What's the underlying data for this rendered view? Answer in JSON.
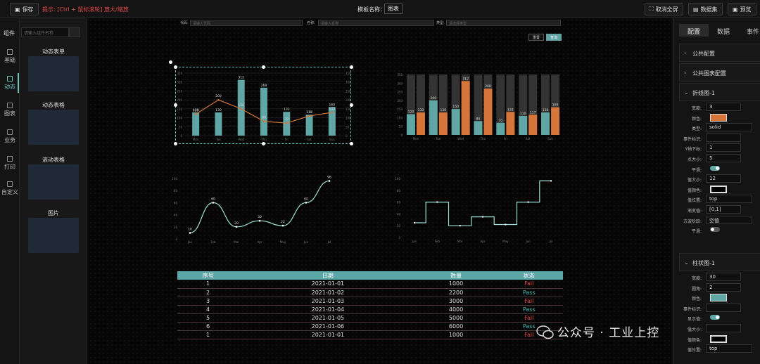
{
  "toolbar": {
    "save": "保存",
    "hint": "提示: [Ctrl + 鼠标滚轮] 放大/缩放",
    "template_label": "模板名称：",
    "template_value": "图表",
    "fullscreen": "取消全屏",
    "dataset": "数据集",
    "preview": "预览"
  },
  "leftnav": [
    "基础",
    "动态",
    "图表",
    "业务",
    "打印",
    "自定义"
  ],
  "components": {
    "heading": "组件",
    "search_placeholder": "请输入组件名称",
    "cards": [
      "动态表单",
      "动态表格",
      "滚动表格",
      "图片"
    ]
  },
  "filters": {
    "code_label": "代码:",
    "code_placeholder": "请输入代码",
    "name_label": "名称:",
    "name_placeholder": "请输入名称",
    "type_label": "类型:",
    "type_placeholder": "请选择类型",
    "reset": "重置",
    "query": "查询"
  },
  "colors": {
    "teal": "#5fa6a5",
    "orange": "#d6763a"
  },
  "chart_data": [
    {
      "type": "bar",
      "categories": [
        "Mon",
        "Tue",
        "Wed",
        "Thu",
        "Fri",
        "Sat",
        "Sun"
      ],
      "series": [
        {
          "values": [
            130,
            130,
            312,
            268,
            133,
            117,
            160
          ]
        },
        {
          "values": [
            120,
            200,
            150,
            80,
            70,
            110,
            130
          ]
        }
      ],
      "ylim": [
        0,
        350
      ],
      "y2lim": [
        0,
        350
      ]
    },
    {
      "type": "bar",
      "categories": [
        "Mon",
        "Tue",
        "Wed",
        "Thu",
        "Fri",
        "Sat",
        "Sun"
      ],
      "series": [
        {
          "values": [
            120,
            200,
            150,
            80,
            70,
            110,
            130
          ]
        },
        {
          "values": [
            130,
            130,
            312,
            268,
            133,
            117,
            160
          ]
        }
      ],
      "ylim": [
        0,
        350
      ]
    },
    {
      "type": "line",
      "categories": [
        "Jan",
        "Feb",
        "Mar",
        "Apr",
        "May",
        "Jun",
        "Jul"
      ],
      "values": [
        10,
        60,
        20,
        30,
        22,
        60,
        96
      ],
      "ylim": [
        0,
        100
      ]
    },
    {
      "type": "line",
      "categories": [
        "Jan",
        "Feb",
        "Mar",
        "Apr",
        "May",
        "Jun",
        "Jul"
      ],
      "values": [
        25,
        60,
        20,
        35,
        22,
        60,
        96
      ],
      "ylim": [
        0,
        100
      ]
    }
  ],
  "table": {
    "headers": [
      "序号",
      "日期",
      "数量",
      "状态"
    ],
    "rows": [
      [
        "1",
        "2021-01-01",
        "1000",
        "Fail"
      ],
      [
        "2",
        "2021-01-02",
        "2200",
        "Pass"
      ],
      [
        "3",
        "2021-01-03",
        "3000",
        "Fail"
      ],
      [
        "4",
        "2021-01-04",
        "4000",
        "Pass"
      ],
      [
        "5",
        "2021-01-05",
        "5000",
        "Fail"
      ],
      [
        "6",
        "2021-01-06",
        "6000",
        "Pass"
      ],
      [
        "1",
        "2021-01-01",
        "1000",
        "Fail"
      ]
    ]
  },
  "right": {
    "tabs": [
      "配置",
      "数据",
      "事件"
    ],
    "sections": [
      "公共配置",
      "公共图表配置",
      "折线图-1",
      "柱状图-1"
    ],
    "line_props": [
      {
        "label": "宽度:",
        "value": "3"
      },
      {
        "label": "颜色:",
        "value": ""
      },
      {
        "label": "类型:",
        "value": "solid"
      },
      {
        "label": "事件标识:",
        "value": ""
      },
      {
        "label": "Y轴下标:",
        "value": "1"
      },
      {
        "label": "点大小:",
        "value": "5"
      },
      {
        "label": "平滑:",
        "value": ""
      },
      {
        "label": "值大小:",
        "value": "12"
      },
      {
        "label": "值颜色:",
        "value": ""
      },
      {
        "label": "值位置:",
        "value": "top"
      },
      {
        "label": "渐变值:",
        "value": "[0,1]"
      },
      {
        "label": "方波阶跃:",
        "value": "空值"
      },
      {
        "label": "平滑:",
        "value": ""
      }
    ],
    "bar_props": [
      {
        "label": "宽度:",
        "value": "30"
      },
      {
        "label": "圆角:",
        "value": "2"
      },
      {
        "label": "颜色:",
        "value": ""
      },
      {
        "label": "事件标识:",
        "value": ""
      },
      {
        "label": "显示值:",
        "value": ""
      },
      {
        "label": "值大小:",
        "value": ""
      },
      {
        "label": "值颜色:",
        "value": ""
      },
      {
        "label": "值位置:",
        "value": "top"
      }
    ]
  },
  "watermark": "公众号 · 工业上控"
}
